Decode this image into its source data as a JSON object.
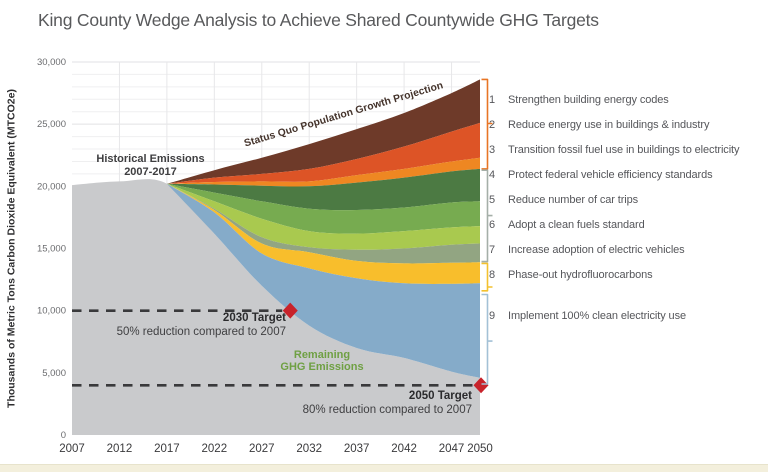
{
  "title": "King County Wedge Analysis to Achieve Shared Countywide GHG Targets",
  "chart_data": {
    "type": "area",
    "title": "King County Wedge Analysis to Achieve Shared Countywide GHG Targets",
    "xlabel": "",
    "ylabel": "Thousands of Metric Tons Carbon Dioxide Equivalent (MTCO2e)",
    "xlim": [
      2007,
      2050
    ],
    "ylim": [
      0,
      30000
    ],
    "grid": "light horizontal lines every 1000, vertical lines every 5 years",
    "legend_position": "right",
    "years": [
      2007,
      2012,
      2017,
      2022,
      2027,
      2032,
      2037,
      2042,
      2047,
      2050
    ],
    "x_ticks": [
      {
        "label": "2007",
        "year": 2007
      },
      {
        "label": "2012",
        "year": 2012
      },
      {
        "label": "2017",
        "year": 2017
      },
      {
        "label": "2022",
        "year": 2022
      },
      {
        "label": "2027",
        "year": 2027
      },
      {
        "label": "2032",
        "year": 2032
      },
      {
        "label": "2037",
        "year": 2037
      },
      {
        "label": "2042",
        "year": 2042
      },
      {
        "label": "2047",
        "year": 2047
      },
      {
        "label": "2050",
        "year": 2050
      }
    ],
    "y_ticks": [
      {
        "label": "30,000",
        "value": 30000
      },
      {
        "label": "25,000",
        "value": 25000
      },
      {
        "label": "20,000",
        "value": 20000
      },
      {
        "label": "15,000",
        "value": 15000
      },
      {
        "label": "10,000",
        "value": 10000
      },
      {
        "label": "5,000",
        "value": 5000
      },
      {
        "label": "0",
        "value": 0
      }
    ],
    "status_quo": {
      "label": "Status Quo Population Growth Projection",
      "values": [
        20100,
        20400,
        20200,
        21300,
        22300,
        23400,
        24600,
        25900,
        27500,
        28600
      ]
    },
    "historical": {
      "label_line1": "Historical Emissions",
      "label_line2": "2007-2017",
      "values_2007_2017": [
        20100,
        20400,
        20200
      ]
    },
    "wedges": [
      {
        "num": 1,
        "label": "Strengthen building energy codes",
        "color": "#6E3A29",
        "lower": [
          20100,
          20400,
          20200,
          20700,
          21000,
          21400,
          22200,
          23200,
          24400,
          25100
        ]
      },
      {
        "num": 2,
        "label": "Reduce energy use in buildings & industry",
        "color": "#DD5426",
        "lower": [
          20100,
          20400,
          20200,
          20350,
          20400,
          20400,
          20900,
          21400,
          22000,
          22300
        ]
      },
      {
        "num": 3,
        "label": "Transition fossil fuel use in buildings to electricity",
        "color": "#EE8722",
        "lower": [
          20100,
          20400,
          20200,
          20150,
          20050,
          20000,
          20300,
          20700,
          21200,
          21400
        ]
      },
      {
        "num": 4,
        "label": "Protect federal vehicle efficiency standards",
        "color": "#4C7A43",
        "lower": [
          20100,
          20400,
          20200,
          19500,
          18800,
          18200,
          18100,
          18300,
          18700,
          18800
        ]
      },
      {
        "num": 5,
        "label": "Reduce number of car trips",
        "color": "#77AB50",
        "lower": [
          20100,
          20400,
          20200,
          18800,
          17400,
          16400,
          16200,
          16400,
          16700,
          16800
        ]
      },
      {
        "num": 6,
        "label": "Adopt a clean fuels standard",
        "color": "#A9C94F",
        "lower": [
          20100,
          20400,
          20200,
          18200,
          15900,
          15100,
          14900,
          15000,
          15300,
          15400
        ]
      },
      {
        "num": 7,
        "label": "Increase adoption of electric vehicles",
        "color": "#92A582",
        "lower": [
          20100,
          20400,
          20200,
          18100,
          15400,
          14700,
          14000,
          13800,
          13850,
          13900
        ]
      },
      {
        "num": 8,
        "label": "Phase-out hydrofluorocarbons",
        "color": "#F8BE2C",
        "lower": [
          20100,
          20400,
          20200,
          17900,
          14600,
          13400,
          12600,
          12200,
          12150,
          12200
        ]
      },
      {
        "num": 9,
        "label": "Implement 100% clean electricity use",
        "color": "#85ABC9",
        "lower": [
          20100,
          20400,
          20200,
          16200,
          12000,
          8800,
          7000,
          6200,
          5100,
          4600
        ]
      }
    ],
    "remaining": {
      "label_line1": "Remaining",
      "label_line2": "GHG Emissions",
      "area_color": "#C9CACC",
      "text_color": "#6FA043"
    },
    "targets": [
      {
        "name": "2030 Target",
        "desc": "50% reduction compared to 2007",
        "value": 10000,
        "marker_year": 2030
      },
      {
        "name": "2050 Target",
        "desc": "80% reduction compared to 2007",
        "value": 4000,
        "marker_year": 2050
      }
    ],
    "brackets": [
      {
        "group": "wedges-1-3",
        "color": "#E87525",
        "top_value": 28600,
        "bottom_value": 21400,
        "nub_value": 25050
      },
      {
        "group": "wedges-4-7",
        "color": "#A5AFA8",
        "top_value": 21300,
        "bottom_value": 13950,
        "nub_value": 17650
      },
      {
        "group": "wedge-8",
        "color": "#F3C12F",
        "top_value": 13800,
        "bottom_value": 11600,
        "nub_value": 11900
      },
      {
        "group": "wedge-9",
        "color": "#A3C1D6",
        "top_value": 11300,
        "bottom_value": 4100,
        "nub_value": 7550
      }
    ],
    "colors": {
      "title_text": "#58595B",
      "axis_text": "#3A3A3C",
      "y_tick_text": "#6B6C6F",
      "grid_minor": "#EFEFF0",
      "grid_major": "#E2E2E4",
      "grid_vertical": "#E7E7E9",
      "target_line": "#39393B",
      "target_marker": "#C8232B",
      "historical_text": "#3E3E40",
      "status_quo_text": "#44332B",
      "legend_text": "#55565A",
      "slide_bottom_strip": "#F3EFDC"
    }
  }
}
